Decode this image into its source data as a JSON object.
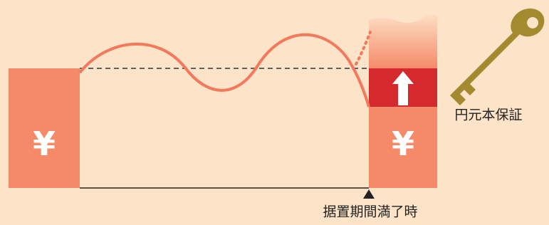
{
  "left_block": {
    "symbol": "¥"
  },
  "right_block": {
    "symbol": "¥"
  },
  "key_label": "円元本保証",
  "time_label": "据置期間満了時"
}
